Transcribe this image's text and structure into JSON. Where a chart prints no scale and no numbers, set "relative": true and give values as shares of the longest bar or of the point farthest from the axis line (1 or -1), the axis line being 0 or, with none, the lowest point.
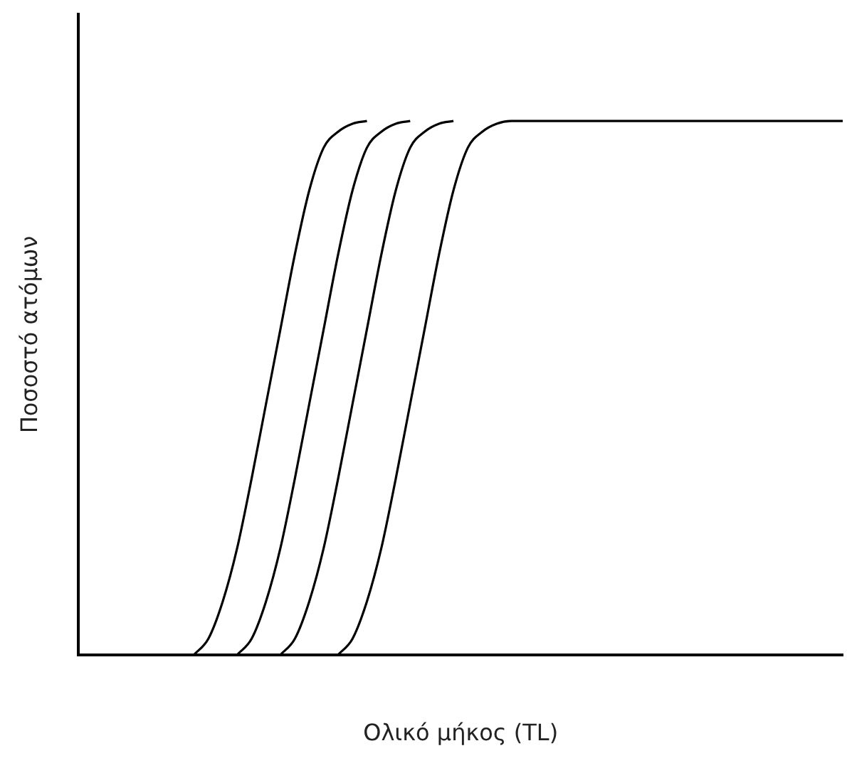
{
  "chart_data": {
    "type": "line",
    "xlabel": "Ολικό μήκος (TL)",
    "ylabel": "Ποσοστό ατόμων",
    "relative": true,
    "grid": false,
    "legend": false,
    "marker": "none",
    "categories": [
      null,
      null,
      null,
      null,
      null,
      null,
      null,
      null,
      null,
      null,
      null,
      null,
      null,
      null,
      null,
      null,
      null,
      null,
      null,
      null,
      null,
      null,
      null,
      null,
      null,
      null,
      null,
      null,
      null,
      null,
      null,
      null,
      null,
      null,
      null,
      null,
      null,
      null,
      null,
      null,
      null,
      null,
      null,
      null,
      null,
      null,
      null,
      null,
      null,
      null,
      null,
      null,
      null,
      null
    ],
    "series": [
      {
        "color": "#000000",
        "values": [
          null,
          null,
          null,
          null,
          null,
          null,
          null,
          null,
          0,
          0.03,
          0.1,
          0.2,
          0.33,
          0.47,
          0.61,
          0.75,
          0.87,
          0.95,
          0.98,
          0.995,
          1,
          null,
          null,
          null,
          null,
          null,
          null,
          null,
          null,
          null,
          null,
          null,
          null,
          null,
          null,
          null,
          null,
          null,
          null,
          null,
          null,
          null,
          null,
          null,
          null,
          null,
          null,
          null,
          null,
          null,
          null,
          null,
          null,
          null
        ]
      },
      {
        "color": "#000000",
        "values": [
          null,
          null,
          null,
          null,
          null,
          null,
          null,
          null,
          null,
          null,
          null,
          0,
          0.03,
          0.1,
          0.2,
          0.33,
          0.47,
          0.61,
          0.75,
          0.87,
          0.95,
          0.98,
          0.995,
          1,
          null,
          null,
          null,
          null,
          null,
          null,
          null,
          null,
          null,
          null,
          null,
          null,
          null,
          null,
          null,
          null,
          null,
          null,
          null,
          null,
          null,
          null,
          null,
          null,
          null,
          null,
          null,
          null,
          null,
          null
        ]
      },
      {
        "color": "#000000",
        "values": [
          null,
          null,
          null,
          null,
          null,
          null,
          null,
          null,
          null,
          null,
          null,
          null,
          null,
          null,
          0,
          0.03,
          0.1,
          0.2,
          0.33,
          0.47,
          0.61,
          0.75,
          0.87,
          0.95,
          0.98,
          0.995,
          1,
          null,
          null,
          null,
          null,
          null,
          null,
          null,
          null,
          null,
          null,
          null,
          null,
          null,
          null,
          null,
          null,
          null,
          null,
          null,
          null,
          null,
          null,
          null,
          null,
          null,
          null,
          null
        ]
      },
      {
        "color": "#000000",
        "values": [
          null,
          null,
          null,
          null,
          null,
          null,
          null,
          null,
          null,
          null,
          null,
          null,
          null,
          null,
          null,
          null,
          null,
          null,
          0,
          0.03,
          0.1,
          0.2,
          0.33,
          0.47,
          0.61,
          0.75,
          0.87,
          0.95,
          0.98,
          0.995,
          1,
          1,
          1,
          1,
          1,
          1,
          1,
          1,
          1,
          1,
          1,
          1,
          1,
          1,
          1,
          1,
          1,
          1,
          1,
          1,
          1,
          1,
          1,
          1
        ]
      }
    ]
  }
}
